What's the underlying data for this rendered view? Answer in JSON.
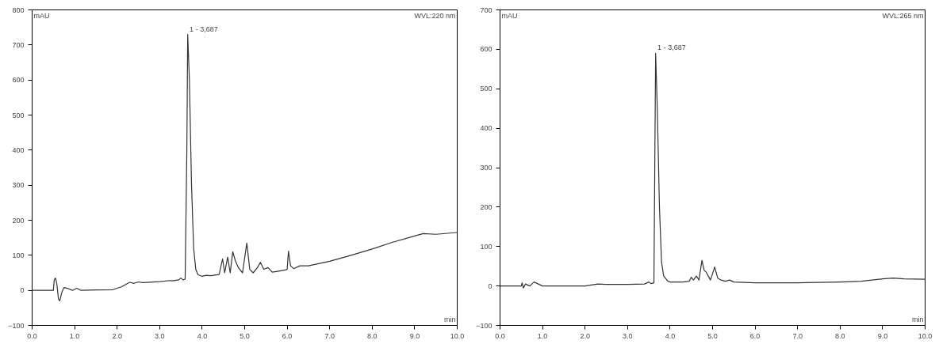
{
  "chart_data": [
    {
      "type": "line",
      "xlabel": "min",
      "ylabel": "mAU",
      "annotations": [
        "WVL:220 nm",
        {
          "text": "1 - 3,687",
          "x": 3.687,
          "y": 730
        }
      ],
      "x": [
        0,
        0.5,
        0.52,
        0.55,
        0.58,
        0.62,
        0.65,
        0.7,
        0.75,
        0.85,
        0.95,
        1.05,
        1.15,
        1.5,
        1.9,
        2.1,
        2.25,
        2.3,
        2.4,
        2.5,
        2.6,
        3.0,
        3.25,
        3.3,
        3.45,
        3.5,
        3.55,
        3.6,
        3.64,
        3.66,
        3.7,
        3.75,
        3.8,
        3.85,
        3.9,
        4.0,
        4.1,
        4.2,
        4.4,
        4.48,
        4.53,
        4.6,
        4.66,
        4.72,
        4.78,
        4.85,
        4.95,
        5.05,
        5.12,
        5.2,
        5.3,
        5.37,
        5.45,
        5.55,
        5.65,
        5.8,
        5.95,
        6.0,
        6.03,
        6.08,
        6.15,
        6.3,
        6.5,
        7.0,
        7.5,
        8.0,
        8.5,
        9.0,
        9.2,
        9.5,
        10.0
      ],
      "series": [
        {
          "color": "#333333",
          "values": [
            0,
            0,
            30,
            35,
            20,
            -25,
            -30,
            -5,
            8,
            5,
            0,
            6,
            0,
            1,
            2,
            10,
            20,
            23,
            20,
            24,
            22,
            25,
            28,
            27,
            30,
            35,
            30,
            32,
            400,
            730,
            600,
            300,
            120,
            60,
            45,
            40,
            43,
            42,
            45,
            90,
            50,
            95,
            50,
            110,
            85,
            65,
            50,
            135,
            60,
            50,
            65,
            80,
            60,
            65,
            52,
            55,
            58,
            60,
            112,
            70,
            62,
            70,
            70,
            83,
            100,
            118,
            138,
            155,
            162,
            160,
            165
          ]
        }
      ],
      "xlim": [
        0,
        10
      ],
      "ylim": [
        -100,
        800
      ],
      "xticks": [
        {
          "value": 0,
          "label": "0.0"
        },
        {
          "value": 1,
          "label": "1.0"
        },
        {
          "value": 2,
          "label": "2.0"
        },
        {
          "value": 3,
          "label": "3.0"
        },
        {
          "value": 4,
          "label": "4.0"
        },
        {
          "value": 5,
          "label": "5.0"
        },
        {
          "value": 6,
          "label": "6.0"
        },
        {
          "value": 7,
          "label": "7.0"
        },
        {
          "value": 8,
          "label": "8.0"
        },
        {
          "value": 9,
          "label": "9.0"
        },
        {
          "value": 10,
          "label": "10.0"
        }
      ],
      "yticks": [
        -100,
        0,
        100,
        200,
        300,
        400,
        500,
        600,
        700,
        800
      ],
      "grid": false
    },
    {
      "type": "line",
      "xlabel": "min",
      "ylabel": "mAU",
      "annotations": [
        "WVL:265 nm",
        {
          "text": "1 - 3,687",
          "x": 3.687,
          "y": 590
        }
      ],
      "x": [
        0,
        0.5,
        0.52,
        0.55,
        0.6,
        0.7,
        0.8,
        0.9,
        1.0,
        1.5,
        2.0,
        2.3,
        2.5,
        3.0,
        3.4,
        3.5,
        3.55,
        3.62,
        3.64,
        3.66,
        3.7,
        3.75,
        3.8,
        3.85,
        3.95,
        4.0,
        4.3,
        4.45,
        4.5,
        4.55,
        4.62,
        4.68,
        4.75,
        4.8,
        4.85,
        4.95,
        5.05,
        5.12,
        5.2,
        5.3,
        5.4,
        5.5,
        6.0,
        7.0,
        8.0,
        8.5,
        9.0,
        9.25,
        9.5,
        10.0
      ],
      "series": [
        {
          "color": "#333333",
          "values": [
            0,
            0,
            8,
            -5,
            5,
            0,
            10,
            5,
            0,
            0,
            0,
            5,
            4,
            4,
            5,
            10,
            6,
            8,
            300,
            590,
            450,
            200,
            60,
            25,
            12,
            10,
            10,
            12,
            22,
            15,
            25,
            15,
            65,
            40,
            35,
            15,
            48,
            20,
            15,
            12,
            15,
            10,
            8,
            8,
            10,
            12,
            18,
            20,
            18,
            17
          ]
        }
      ],
      "xlim": [
        0,
        10
      ],
      "ylim": [
        -100,
        700
      ],
      "xticks": [
        {
          "value": 0,
          "label": "0.0"
        },
        {
          "value": 1,
          "label": "1.0"
        },
        {
          "value": 2,
          "label": "2.0"
        },
        {
          "value": 3,
          "label": "3.0"
        },
        {
          "value": 4,
          "label": "4.0"
        },
        {
          "value": 5,
          "label": "5.0"
        },
        {
          "value": 6,
          "label": "6.0"
        },
        {
          "value": 7,
          "label": "7.0"
        },
        {
          "value": 8,
          "label": "8.0"
        },
        {
          "value": 9,
          "label": "9.0"
        },
        {
          "value": 10,
          "label": "10.0"
        }
      ],
      "yticks": [
        -100,
        0,
        100,
        200,
        300,
        400,
        500,
        600,
        700
      ],
      "grid": false
    }
  ]
}
